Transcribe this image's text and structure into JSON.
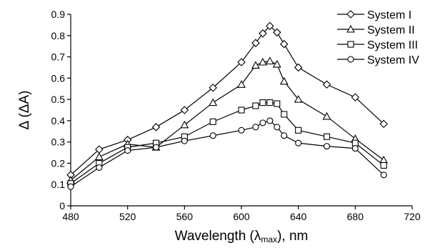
{
  "chart_data": {
    "type": "line",
    "xlabel": "Wavelength (λmax), nm",
    "xlabel_main": "Wavelength (λ",
    "xlabel_sub": "max",
    "xlabel_end": "), nm",
    "ylabel": "Δ (ΔA)",
    "xlim": [
      480,
      720
    ],
    "ylim": [
      0,
      0.9
    ],
    "xticks": [
      480,
      520,
      560,
      600,
      640,
      680,
      720
    ],
    "yticks": [
      0,
      0.1,
      0.2,
      0.3,
      0.4,
      0.5,
      0.6,
      0.7,
      0.8,
      0.9
    ],
    "xtick_labels": [
      "480",
      "520",
      "560",
      "600",
      "640",
      "680",
      "720"
    ],
    "ytick_labels": [
      "0",
      "0.1",
      "0.2",
      "0.3",
      "0.4",
      "0.5",
      "0.6",
      "0.7",
      "0.8",
      "0.9"
    ],
    "legend_position": "top-right",
    "grid": false,
    "series": [
      {
        "name": "System I",
        "marker": "diamond",
        "x": [
          480,
          500,
          520,
          540,
          560,
          580,
          600,
          610,
          615,
          620,
          625,
          630,
          640,
          660,
          680,
          700
        ],
        "y": [
          0.145,
          0.265,
          0.31,
          0.37,
          0.45,
          0.555,
          0.675,
          0.765,
          0.81,
          0.845,
          0.815,
          0.76,
          0.65,
          0.57,
          0.51,
          0.385
        ]
      },
      {
        "name": "System II",
        "marker": "triangle",
        "x": [
          480,
          500,
          520,
          540,
          560,
          580,
          600,
          610,
          615,
          620,
          625,
          630,
          640,
          660,
          680,
          700
        ],
        "y": [
          0.12,
          0.23,
          0.29,
          0.275,
          0.38,
          0.485,
          0.57,
          0.66,
          0.675,
          0.68,
          0.665,
          0.585,
          0.5,
          0.42,
          0.315,
          0.215
        ]
      },
      {
        "name": "System III",
        "marker": "square",
        "x": [
          480,
          500,
          520,
          540,
          560,
          580,
          600,
          610,
          615,
          620,
          625,
          630,
          640,
          660,
          680,
          700
        ],
        "y": [
          0.105,
          0.2,
          0.275,
          0.295,
          0.325,
          0.395,
          0.45,
          0.47,
          0.485,
          0.485,
          0.48,
          0.43,
          0.355,
          0.325,
          0.295,
          0.19
        ]
      },
      {
        "name": "System IV",
        "marker": "circle",
        "x": [
          480,
          500,
          520,
          540,
          560,
          580,
          600,
          610,
          615,
          620,
          625,
          630,
          640,
          660,
          680,
          700
        ],
        "y": [
          0.09,
          0.18,
          0.26,
          0.275,
          0.305,
          0.33,
          0.355,
          0.37,
          0.39,
          0.4,
          0.37,
          0.33,
          0.295,
          0.28,
          0.27,
          0.145
        ]
      }
    ]
  }
}
